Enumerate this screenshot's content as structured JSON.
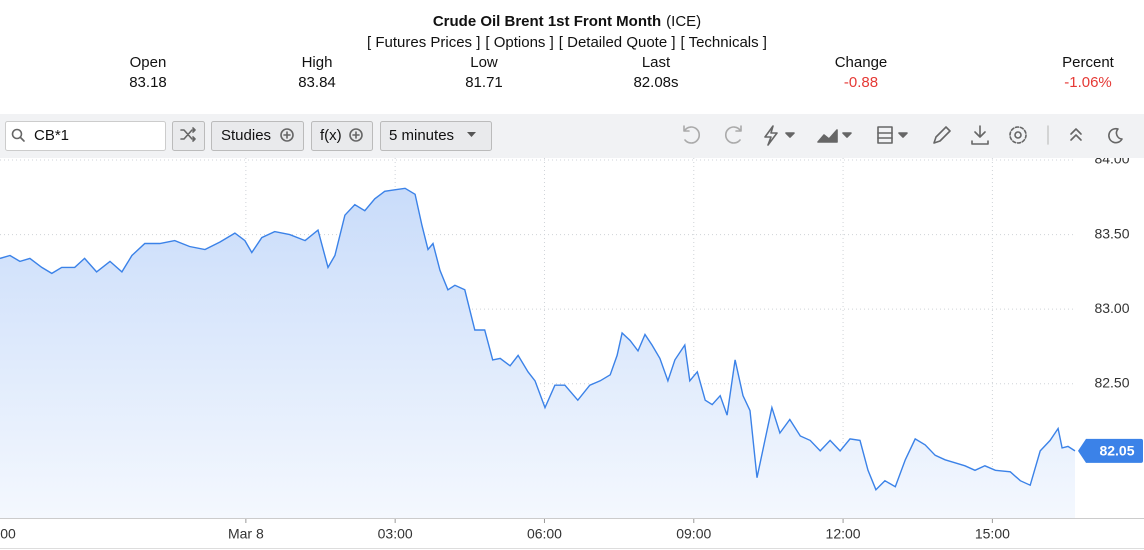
{
  "header": {
    "title": "Crude Oil Brent 1st Front Month",
    "exchange": "(ICE)",
    "links": [
      "[ Futures Prices ]",
      "[ Options ]",
      "[ Detailed Quote ]",
      "[ Technicals ]"
    ]
  },
  "quote": [
    {
      "label": "Open",
      "value": "83.18"
    },
    {
      "label": "High",
      "value": "83.84"
    },
    {
      "label": "Low",
      "value": "81.71"
    },
    {
      "label": "Last",
      "value": "82.08s"
    },
    {
      "label": "Change",
      "value": "-0.88"
    },
    {
      "label": "Percent",
      "value": "-1.06%"
    }
  ],
  "toolbar": {
    "symbol": "CB*1",
    "buttons": [
      "Studies",
      "f(x)",
      "5 minutes"
    ]
  },
  "chart_data": {
    "type": "line",
    "x": [
      -4.94,
      -4.74,
      -4.54,
      -4.34,
      -4.1,
      -3.9,
      -3.7,
      -3.44,
      -3.24,
      -3.0,
      -2.73,
      -2.49,
      -2.29,
      -2.03,
      -1.73,
      -1.43,
      -1.13,
      -0.82,
      -0.52,
      -0.22,
      -0.02,
      0.12,
      0.32,
      0.58,
      0.88,
      1.19,
      1.45,
      1.65,
      1.79,
      1.99,
      2.19,
      2.39,
      2.59,
      2.79,
      2.99,
      3.2,
      3.4,
      3.54,
      3.66,
      3.76,
      3.9,
      4.06,
      4.2,
      4.4,
      4.6,
      4.8,
      4.96,
      5.11,
      5.31,
      5.47,
      5.67,
      5.81,
      6.01,
      6.21,
      6.41,
      6.67,
      6.91,
      7.12,
      7.32,
      7.46,
      7.56,
      7.72,
      7.88,
      8.02,
      8.16,
      8.32,
      8.48,
      8.62,
      8.82,
      8.92,
      9.07,
      9.23,
      9.37,
      9.53,
      9.67,
      9.83,
      9.99,
      10.13,
      10.27,
      10.43,
      10.57,
      10.73,
      10.93,
      11.14,
      11.34,
      11.54,
      11.74,
      11.94,
      12.14,
      12.34,
      12.5,
      12.66,
      12.84,
      13.05,
      13.25,
      13.45,
      13.65,
      13.85,
      14.05,
      14.25,
      14.45,
      14.65,
      14.85,
      15.06,
      15.36,
      15.56,
      15.76,
      15.96,
      16.16,
      16.32,
      16.4,
      16.52,
      16.66
    ],
    "series": [
      {
        "color": "#3b82e8",
        "values": [
          83.34,
          83.36,
          83.32,
          83.34,
          83.28,
          83.24,
          83.28,
          83.28,
          83.34,
          83.25,
          83.32,
          83.25,
          83.36,
          83.44,
          83.44,
          83.46,
          83.42,
          83.4,
          83.45,
          83.51,
          83.46,
          83.38,
          83.48,
          83.52,
          83.5,
          83.46,
          83.53,
          83.28,
          83.36,
          83.63,
          83.7,
          83.66,
          83.74,
          83.79,
          83.8,
          83.81,
          83.77,
          83.56,
          83.4,
          83.44,
          83.26,
          83.13,
          83.16,
          83.13,
          82.86,
          82.86,
          82.66,
          82.67,
          82.62,
          82.69,
          82.58,
          82.52,
          82.34,
          82.49,
          82.49,
          82.39,
          82.49,
          82.52,
          82.56,
          82.69,
          82.84,
          82.79,
          82.72,
          82.83,
          82.76,
          82.67,
          82.52,
          82.66,
          82.76,
          82.52,
          82.58,
          82.39,
          82.36,
          82.42,
          82.29,
          82.66,
          82.42,
          82.32,
          81.87,
          82.12,
          82.34,
          82.17,
          82.26,
          82.15,
          82.12,
          82.05,
          82.12,
          82.05,
          82.13,
          82.12,
          81.92,
          81.79,
          81.85,
          81.81,
          81.99,
          82.13,
          82.09,
          82.02,
          81.99,
          81.97,
          81.95,
          81.92,
          81.95,
          81.92,
          81.91,
          81.85,
          81.82,
          82.05,
          82.12,
          82.2,
          82.07,
          82.08,
          82.05
        ]
      }
    ],
    "xlim": [
      -4.94,
      16.66
    ],
    "xticks": [
      {
        "value": -5,
        "label": "00"
      },
      {
        "value": 0,
        "label": "Mar 8"
      },
      {
        "value": 3,
        "label": "03:00"
      },
      {
        "value": 6,
        "label": "06:00"
      },
      {
        "value": 9,
        "label": "09:00"
      },
      {
        "value": 12,
        "label": "12:00"
      },
      {
        "value": 15,
        "label": "15:00"
      }
    ],
    "ylim": [
      81.6,
      84.0
    ],
    "yticks": [
      {
        "value": 84,
        "label": "84.00"
      },
      {
        "value": 83.5,
        "label": "83.50"
      },
      {
        "value": 83,
        "label": "83.00"
      },
      {
        "value": 82.5,
        "label": "82.50"
      }
    ],
    "grid": true
  }
}
